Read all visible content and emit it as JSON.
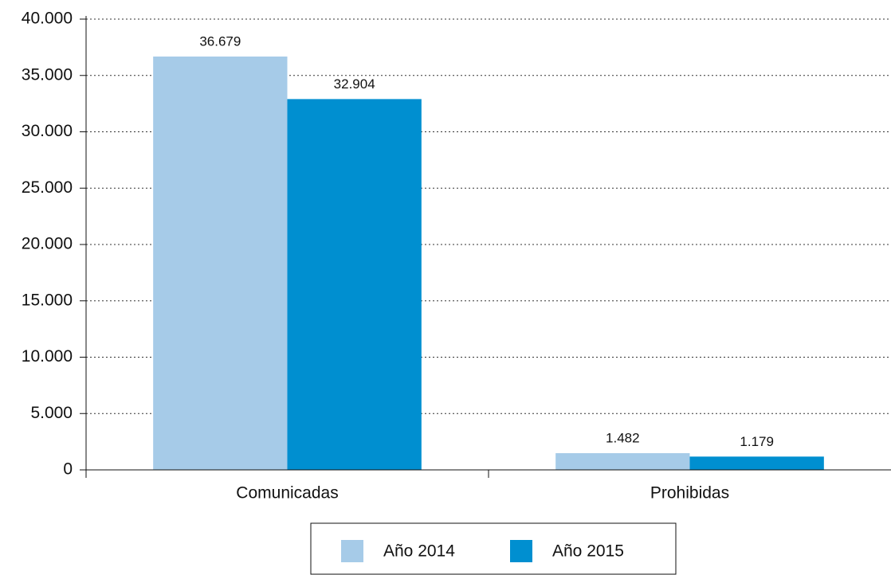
{
  "chart_data": {
    "type": "bar",
    "categories": [
      "Comunicadas",
      "Prohibidas"
    ],
    "series": [
      {
        "name": "Año 2014",
        "color": "#a6cbe8",
        "values": [
          36679,
          1482
        ],
        "value_labels": [
          "36.679",
          "1.482"
        ]
      },
      {
        "name": "Año 2015",
        "color": "#008fd0",
        "values": [
          32904,
          1179
        ],
        "value_labels": [
          "32.904",
          "1.179"
        ]
      }
    ],
    "ylim": [
      0,
      40000
    ],
    "yticks": [
      0,
      {
        "value": 5000,
        "label": "5.000"
      },
      {
        "value": 10000,
        "label": "10.000"
      },
      {
        "value": 15000,
        "label": "15.000"
      },
      {
        "value": 20000,
        "label": "20.000"
      },
      {
        "value": 25000,
        "label": "25.000"
      },
      {
        "value": 30000,
        "label": "30.000"
      },
      {
        "value": 35000,
        "label": "35.000"
      },
      {
        "value": 40000,
        "label": "40.000"
      }
    ],
    "grid": true,
    "legend": "bottom"
  }
}
